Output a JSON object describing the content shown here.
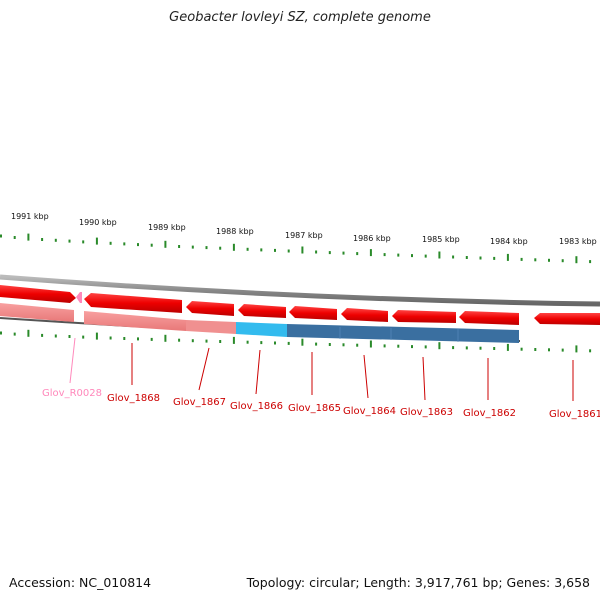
{
  "title": "Geobacter lovleyi SZ, complete genome",
  "footer": {
    "accession": "Accession: NC_010814",
    "summary": "Topology: circular; Length: 3,917,761 bp; Genes: 3,658"
  },
  "colors": {
    "cds": "#ff0000",
    "rna": "#ff88bb",
    "tick": "#2a8a2a",
    "backbone": "#888888",
    "highlight_cyan": "#33bbee",
    "highlight_blue": "#3a6fa0"
  },
  "kbp_labels": [
    "1991 kbp",
    "1990 kbp",
    "1989 kbp",
    "1988 kbp",
    "1987 kbp",
    "1986 kbp",
    "1985 kbp",
    "1984 kbp",
    "1983 kbp"
  ],
  "genes": [
    {
      "label": "Glov_R0028",
      "color": "#ff88bb"
    },
    {
      "label": "Glov_1868",
      "color": "#cc0000"
    },
    {
      "label": "Glov_1867",
      "color": "#cc0000"
    },
    {
      "label": "Glov_1866",
      "color": "#cc0000"
    },
    {
      "label": "Glov_1865",
      "color": "#cc0000"
    },
    {
      "label": "Glov_1864",
      "color": "#cc0000"
    },
    {
      "label": "Glov_1863",
      "color": "#cc0000"
    },
    {
      "label": "Glov_1862",
      "color": "#cc0000"
    },
    {
      "label": "Glov_1861",
      "color": "#cc0000"
    }
  ]
}
